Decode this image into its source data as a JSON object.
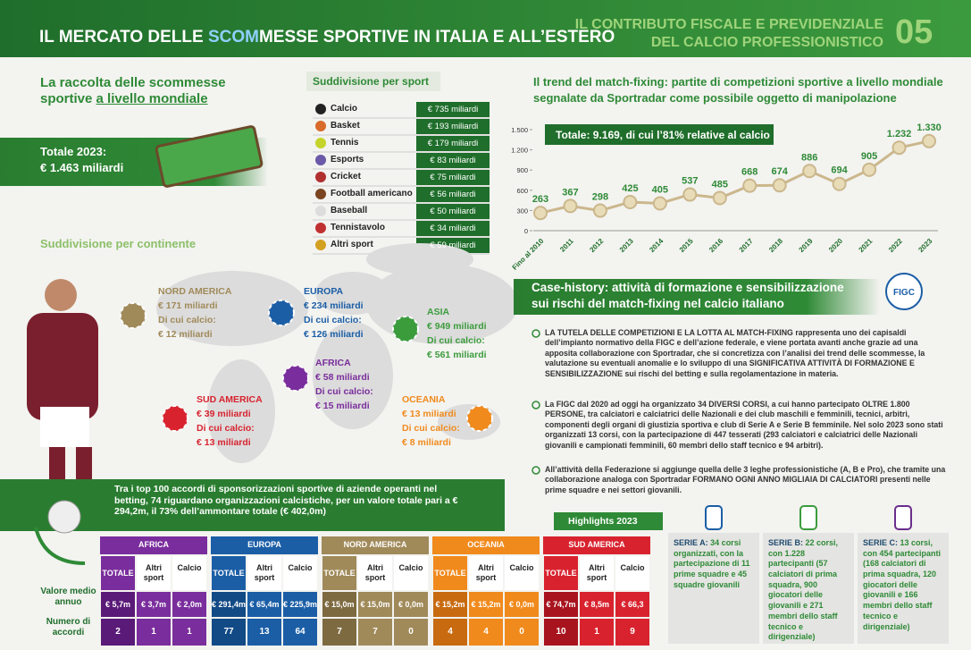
{
  "header": {
    "title_parts": [
      "IL MERCATO DELLE ",
      "SCOM",
      "MESSE SPORTIVE IN ITALIA E ALL’ESTERO"
    ],
    "section_title": [
      "IL CONTRIBUTO FISCALE E PREVIDENZIALE",
      "DEL CALCIO PROFESSIONISTICO"
    ],
    "section_number": "05"
  },
  "world": {
    "title_parts": [
      "La raccolta delle scommesse",
      "sportive ",
      "a livello mondiale"
    ],
    "total_label": "Totale 2023:",
    "total_value": "€ 1.463 miliardi"
  },
  "sports": {
    "title": "Suddivisione per sport",
    "rows": [
      [
        "Calcio",
        "€ 735 miliardi"
      ],
      [
        "Basket",
        "€ 193 miliardi"
      ],
      [
        "Tennis",
        "€ 179 miliardi"
      ],
      [
        "Esports",
        "€ 83 miliardi"
      ],
      [
        "Cricket",
        "€ 75 miliardi"
      ],
      [
        "Football americano",
        "€ 56 miliardi"
      ],
      [
        "Baseball",
        "€ 50 miliardi"
      ],
      [
        "Tennistavolo",
        "€ 34 miliardi"
      ],
      [
        "Altri sport",
        "€ 59 miliardi"
      ]
    ]
  },
  "continents": {
    "title": "Suddivisione per continente",
    "items": [
      {
        "name": "NORD AMERICA",
        "value": "€ 171 miliardi",
        "football_label": "Di cui calcio:",
        "football_value": "€ 12 miliardi"
      },
      {
        "name": "EUROPA",
        "value": "€ 234 miliardi",
        "football_label": "Di cui calcio:",
        "football_value": "€ 126 miliardi"
      },
      {
        "name": "ASIA",
        "value": "€ 949 miliardi",
        "football_label": "Di cui calcio:",
        "football_value": "€ 561 miliardi"
      },
      {
        "name": "AFRICA",
        "value": "€ 58 miliardi",
        "football_label": "Di cui calcio:",
        "football_value": "€ 15 miliardi"
      },
      {
        "name": "SUD AMERICA",
        "value": "€ 39 miliardi",
        "football_label": "Di cui calcio:",
        "football_value": "€ 13 miliardi"
      },
      {
        "name": "OCEANIA",
        "value": "€ 13 miliardi",
        "football_label": "Di cui calcio:",
        "football_value": "€ 8 miliardi"
      }
    ]
  },
  "sponsorship": {
    "text": "Tra i top 100 accordi di sponsorizzazioni sportive di aziende operanti nel betting, 74 riguardano organizzazioni calcistiche, per un valore totale pari a € 294,2m, il 73% dell’ammontare totale (€ 402,0m)"
  },
  "sponsor_table": {
    "row_labels": [
      "Valore medio annuo",
      "Numero di accordi"
    ],
    "columns": [
      "TOTALE",
      "Altri sport",
      "Calcio"
    ],
    "groups": [
      {
        "name": "AFRICA",
        "values": [
          "€ 5,7m",
          "€ 3,7m",
          "€ 2,0m"
        ],
        "counts": [
          2,
          1,
          1
        ]
      },
      {
        "name": "EUROPA",
        "values": [
          "€ 291,4m",
          "€ 65,4m",
          "€ 225,9m"
        ],
        "counts": [
          77,
          13,
          64
        ]
      },
      {
        "name": "NORD AMERICA",
        "values": [
          "€ 15,0m",
          "€ 15,0m",
          "€ 0,0m"
        ],
        "counts": [
          7,
          7,
          0
        ]
      },
      {
        "name": "OCEANIA",
        "values": [
          "€ 15,2m",
          "€ 15,2m",
          "€ 0,0m"
        ],
        "counts": [
          4,
          4,
          0
        ]
      },
      {
        "name": "SUD AMERICA",
        "values": [
          "€ 74,7m",
          "€ 8,5m",
          "€ 66,3"
        ],
        "counts": [
          10,
          1,
          9
        ]
      }
    ]
  },
  "chart_data": {
    "type": "line",
    "title": [
      "Il trend del match-fixing: partite di competizioni sportive a livello mondiale",
      "segnalate da Sportradar come possibile oggetto di manipolazione"
    ],
    "annotation": "Totale: 9.169, di cui l’81% relative al calcio",
    "categories": [
      "Fino al 2010",
      "2011",
      "2012",
      "2013",
      "2014",
      "2015",
      "2016",
      "2017",
      "2018",
      "2019",
      "2020",
      "2021",
      "2022",
      "2023"
    ],
    "values": [
      263,
      367,
      298,
      425,
      405,
      537,
      485,
      668,
      674,
      886,
      694,
      905,
      1232,
      1330
    ],
    "value_labels": [
      "263",
      "367",
      "298",
      "425",
      "405",
      "537",
      "485",
      "668",
      "674",
      "886",
      "694",
      "905",
      "1.232",
      "1.330"
    ],
    "ylim": [
      0,
      1500
    ],
    "yticks": [
      0,
      300,
      600,
      900,
      {
        "value": 1200,
        "label": "1.200"
      },
      {
        "value": 1500,
        "label": "1.500"
      }
    ],
    "grid": false,
    "color": "#cbb78c"
  },
  "case_history": {
    "title": [
      "Case-history: attività di formazione e sensibilizzazione",
      "sui rischi del match-fixing nel calcio italiano"
    ],
    "logo": "FIGC",
    "bullets": [
      "LA TUTELA DELLE COMPETIZIONI E LA LOTTA AL MATCH-FIXING rappresenta uno dei capisaldi dell’impianto normativo della FIGC e dell’azione federale, e viene portata avanti anche grazie ad una apposita collaborazione con Sportradar, che si concretizza con l’analisi dei trend delle scommesse, la valutazione su eventuali anomalie e lo sviluppo di una SIGNIFICATIVA ATTIVITÀ DI FORMAZIONE E SENSIBILIZZAZIONE sui rischi del betting e sulla regolamentazione in materia.",
      "La FIGC dal 2020 ad oggi ha organizzato 34 DIVERSI CORSI, a cui hanno partecipato OLTRE 1.800 PERSONE, tra calciatori e calciatrici delle Nazionali e dei club maschili e femminili, tecnici, arbitri, componenti degli organi di giustizia sportiva e club di Serie A e Serie B femminile. Nel solo 2023 sono stati organizzati 13 corsi, con la partecipazione di 447 tesserati (293 calciatori e calciatrici delle Nazionali giovanili e campionati femminili, 60 membri dello staff tecnico e 94 arbitri).",
      "All’attività della Federazione si aggiunge quella delle 3 leghe professionistiche (A, B e Pro), che tramite una collaborazione analoga con Sportradar FORMANO OGNI ANNO MIGLIAIA DI CALCIATORI presenti nelle prime squadre e nei settori giovanili."
    ],
    "highlights_title": "Highlights 2023",
    "highlights": [
      {
        "name": "SERIE A:",
        "text": " 34 corsi organizzati, con la partecipazione di 11 prime squadre e 45 squadre giovanili"
      },
      {
        "name": "SERIE B:",
        "text": " 22 corsi, con 1.228 partecipanti (57 calciatori di prima squadra, 900 giocatori delle giovanili e 271 membri dello staff tecnico e dirigenziale)"
      },
      {
        "name": "SERIE C:",
        "text": " 13 corsi, con 454 partecipanti (168 calciatori di prima squadra, 120 giocatori delle giovanili e 166 membri dello staff tecnico e dirigenziale)"
      }
    ]
  }
}
